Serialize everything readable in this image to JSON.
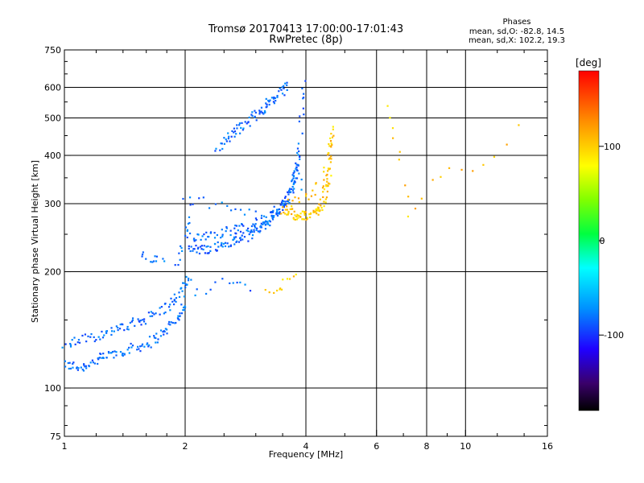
{
  "chart_data": {
    "type": "scatter",
    "title": "Tromsø 20170413 17:00:00-17:01:43",
    "subtitle": "RwPretec (8p)",
    "xlabel": "Frequency [MHz]",
    "ylabel": "Stationary phase Virtual Height [km]",
    "x_scale": "log",
    "y_scale": "log",
    "xlim": [
      1,
      16
    ],
    "ylim": [
      75,
      750
    ],
    "x_ticks": [
      1,
      2,
      4,
      6,
      8,
      10,
      16
    ],
    "x_tick_labels": [
      "1",
      "2",
      "4",
      "6",
      "8",
      "10",
      "16"
    ],
    "x_grid": [
      2,
      4,
      6,
      8,
      10
    ],
    "y_ticks": [
      75,
      100,
      200,
      300,
      400,
      500,
      600,
      750
    ],
    "y_tick_labels": [
      "75",
      "100",
      "200",
      "300",
      "400",
      "500",
      "600",
      "750"
    ],
    "y_grid": [
      100,
      200,
      300,
      400,
      500,
      600
    ],
    "grid": true,
    "phases": {
      "title": "Phases",
      "line_o": "mean, sd,O: -82.8, 14.5",
      "line_x": "mean, sd,X: 102.2, 19.3"
    },
    "colorbar": {
      "label": "[deg]",
      "range": [
        -180,
        180
      ],
      "ticks": [
        100,
        0,
        -100
      ],
      "tick_labels": [
        "100",
        "0",
        "-100"
      ]
    },
    "series": [
      {
        "name": "O-mode",
        "phase_mean": -82.8,
        "phase_sd": 14.5,
        "traces": [
          {
            "x": [
              1.0,
              1.1,
              1.2,
              1.3,
              1.45,
              1.6,
              1.75,
              1.9,
              2.0
            ],
            "y": [
              115,
              113,
              118,
              122,
              126,
              130,
              138,
              150,
              165
            ]
          },
          {
            "x": [
              1.0,
              1.15,
              1.3,
              1.45,
              1.6,
              1.8,
              1.95,
              2.05
            ],
            "y": [
              130,
              135,
              140,
              145,
              152,
              162,
              175,
              195
            ]
          },
          {
            "x": [
              1.55,
              1.62,
              1.7,
              1.78
            ],
            "y": [
              225,
              218,
              214,
              212
            ]
          },
          {
            "x": [
              1.9,
              1.95,
              2.0,
              2.05,
              2.1
            ],
            "y": [
              210,
              225,
              250,
              275,
              310
            ]
          },
          {
            "x": [
              2.05,
              2.2,
              2.4,
              2.6,
              2.8,
              3.0,
              3.2,
              3.4,
              3.6,
              3.75,
              3.85
            ],
            "y": [
              230,
              228,
              232,
              238,
              245,
              255,
              268,
              285,
              310,
              350,
              410
            ]
          },
          {
            "x": [
              2.05,
              2.3,
              2.6,
              2.9,
              3.2,
              3.5,
              3.7,
              3.85
            ],
            "y": [
              245,
              250,
              256,
              262,
              272,
              292,
              330,
              380
            ]
          },
          {
            "x": [
              2.0,
              2.3,
              2.6,
              2.9,
              3.2,
              3.5
            ],
            "y": [
              310,
              300,
              290,
              283,
              283,
              292
            ]
          },
          {
            "x": [
              2.1,
              2.4,
              2.7,
              3.0
            ],
            "y": [
              175,
              185,
              192,
              180
            ]
          },
          {
            "x": [
              3.85,
              3.88,
              3.9,
              3.92,
              3.95
            ],
            "y": [
              330,
              420,
              500,
              570,
              620
            ]
          },
          {
            "x": [
              2.4,
              2.6,
              2.8,
              3.0,
              3.2,
              3.4,
              3.6
            ],
            "y": [
              420,
              450,
              480,
              510,
              540,
              570,
              610
            ]
          }
        ]
      },
      {
        "name": "X-mode",
        "phase_mean": 102.2,
        "phase_sd": 19.3,
        "traces": [
          {
            "x": [
              3.5,
              3.7,
              3.9,
              4.1,
              4.3,
              4.45,
              4.55,
              4.6,
              4.65
            ],
            "y": [
              290,
              282,
              278,
              280,
              290,
              310,
              350,
              410,
              470
            ]
          },
          {
            "x": [
              3.6,
              3.8,
              4.0,
              4.2,
              4.4,
              4.55
            ],
            "y": [
              300,
              305,
              312,
              325,
              345,
              380
            ]
          },
          {
            "x": [
              3.2,
              3.4,
              3.6,
              3.8
            ],
            "y": [
              175,
              182,
              188,
              195
            ]
          },
          {
            "x": [
              6.3,
              6.8,
              7.2,
              8.6,
              11.0,
              14.5
            ],
            "y": [
              550,
              420,
              280,
              360,
              370,
              520
            ]
          }
        ]
      }
    ]
  }
}
